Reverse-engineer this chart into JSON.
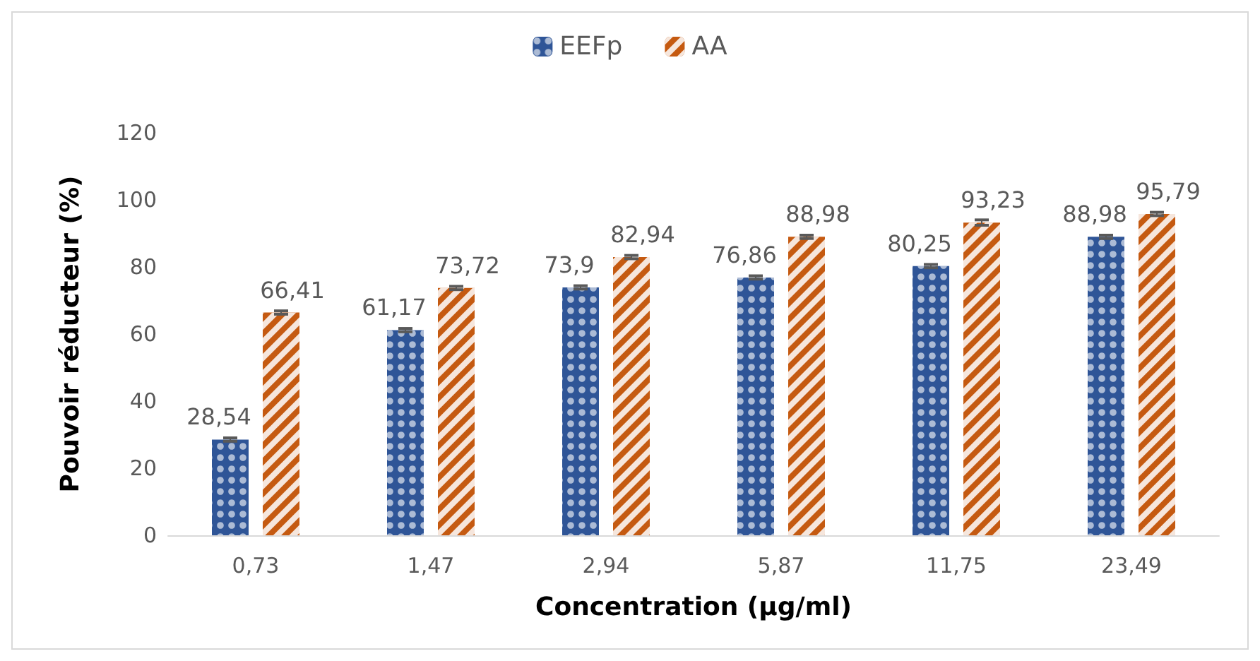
{
  "chart_data": {
    "type": "bar",
    "xlabel": "Concentration (µg/ml)",
    "ylabel": "Pouvoir réducteur (%)",
    "categories": [
      "0,73",
      "1,47",
      "2,94",
      "5,87",
      "11,75",
      "23,49"
    ],
    "series": [
      {
        "name": "EEFp",
        "color": "#2f5597",
        "values": [
          28.54,
          61.17,
          73.9,
          76.86,
          80.25,
          88.98
        ],
        "value_labels": [
          "28,54",
          "61,17",
          "73,9",
          "76,86",
          "80,25",
          "88,98"
        ],
        "errors": [
          0.5,
          0.5,
          0.5,
          0.5,
          0.5,
          0.5
        ]
      },
      {
        "name": "AA",
        "color": "#c55a11",
        "values": [
          66.41,
          73.72,
          82.94,
          88.98,
          93.23,
          95.79
        ],
        "value_labels": [
          "66,41",
          "73,72",
          "82,94",
          "88,98",
          "93,23",
          "95,79"
        ],
        "errors": [
          0.5,
          0.5,
          0.5,
          0.5,
          0.8,
          0.5
        ]
      }
    ],
    "ylim": [
      0,
      120
    ],
    "yticks": [
      0,
      20,
      40,
      60,
      80,
      100,
      120
    ],
    "grid": false,
    "legend": "top"
  }
}
